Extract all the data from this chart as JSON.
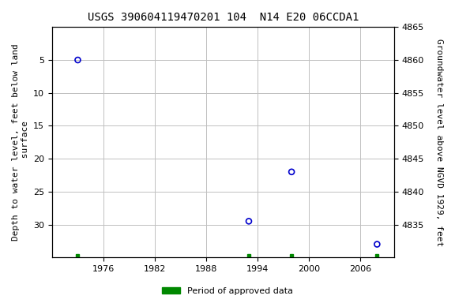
{
  "title": "USGS 390604119470201 104  N14 E20 06CCDA1",
  "ylabel_left": "Depth to water level, feet below land\n surface",
  "ylabel_right": "Groundwater level above NGVD 1929, feet",
  "xlim": [
    1970,
    2010
  ],
  "ylim_left_top": 0,
  "ylim_left_bottom": 35,
  "ylim_right_top": 4865,
  "ylim_right_bottom": 4830,
  "xticks": [
    1976,
    1982,
    1988,
    1994,
    2000,
    2006
  ],
  "yticks_left": [
    5,
    10,
    15,
    20,
    25,
    30
  ],
  "yticks_right": [
    4865,
    4860,
    4855,
    4850,
    4845,
    4840,
    4835
  ],
  "data_points_x": [
    1973,
    1993,
    1998,
    2008
  ],
  "data_points_y": [
    5,
    29.5,
    22,
    33
  ],
  "approved_data_x": [
    1973,
    1993,
    1998,
    2008
  ],
  "approved_data_y": 34.7,
  "point_color": "#0000cc",
  "approved_color": "#008800",
  "background_color": "#ffffff",
  "grid_color": "#c0c0c0",
  "title_fontsize": 10,
  "axis_label_fontsize": 8,
  "tick_fontsize": 8,
  "legend_fontsize": 8,
  "legend_label": "Period of approved data"
}
